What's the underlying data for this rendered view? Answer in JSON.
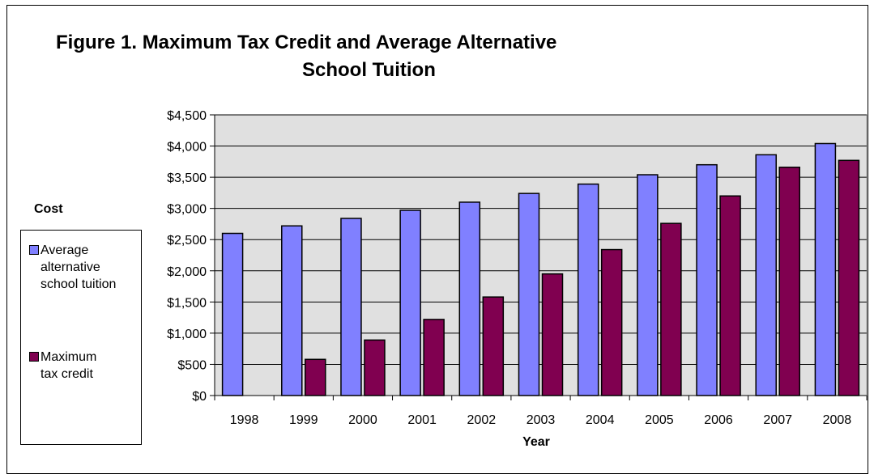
{
  "chart_data": {
    "type": "bar",
    "title": "Figure 1.  Maximum Tax Credit and Average Alternative School Tuition",
    "title_line1": "Figure 1.  Maximum Tax Credit and Average Alternative",
    "title_line2": "School Tuition",
    "xlabel": "Year",
    "legend_title": "Cost",
    "categories": [
      "1998",
      "1999",
      "2000",
      "2001",
      "2002",
      "2003",
      "2004",
      "2005",
      "2006",
      "2007",
      "2008"
    ],
    "series": [
      {
        "name": "Average alternative school tuition",
        "color": "#8080ff",
        "values": [
          2600,
          2720,
          2840,
          2970,
          3100,
          3240,
          3390,
          3540,
          3700,
          3860,
          4040
        ]
      },
      {
        "name": "Maximum tax credit",
        "color": "#800050",
        "values": [
          0,
          580,
          890,
          1220,
          1580,
          1950,
          2340,
          2760,
          3200,
          3660,
          3770
        ]
      }
    ],
    "ylim": [
      0,
      4500
    ],
    "yticks": [
      0,
      500,
      1000,
      1500,
      2000,
      2500,
      3000,
      3500,
      4000,
      4500
    ],
    "ytick_labels": [
      "$0",
      "$500",
      "$1,000",
      "$1,500",
      "$2,000",
      "$2,500",
      "$3,000",
      "$3,500",
      "$4,000",
      "$4,500"
    ],
    "grid": true,
    "plot_background": "#e0e0e0",
    "legend_position": "left"
  }
}
